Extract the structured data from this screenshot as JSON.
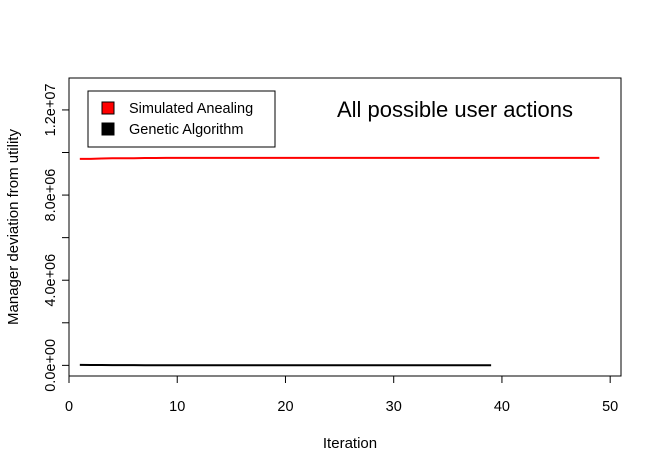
{
  "chart_data": {
    "type": "line",
    "title": "",
    "annotation": "All possible user actions",
    "xlabel": "Iteration",
    "ylabel": "Manager deviation from utility",
    "xlim": [
      0,
      51
    ],
    "ylim": [
      -500000,
      13500000
    ],
    "x_ticks": [
      0,
      10,
      20,
      30,
      40,
      50
    ],
    "x_tick_labels": [
      "0",
      "10",
      "20",
      "30",
      "40",
      "50"
    ],
    "y_ticks": [
      0,
      2000000,
      4000000,
      6000000,
      8000000,
      10000000,
      12000000
    ],
    "y_tick_labels": [
      "0.0e+00",
      "",
      "4.0e+06",
      "",
      "8.0e+06",
      "",
      "1.2e+07"
    ],
    "grid": false,
    "legend": "top-left",
    "series": [
      {
        "name": "Simulated Anealing",
        "color": "#ff0000",
        "x_start": 1,
        "x_end": 49,
        "x_step": 1,
        "values": [
          9700000,
          9700000,
          9720000,
          9730000,
          9730000,
          9730000,
          9740000,
          9740000,
          9750000,
          9750000,
          9750000,
          9750000,
          9750000,
          9750000,
          9750000,
          9750000,
          9750000,
          9750000,
          9750000,
          9750000,
          9750000,
          9750000,
          9750000,
          9750000,
          9750000,
          9750000,
          9750000,
          9750000,
          9750000,
          9750000,
          9750000,
          9750000,
          9750000,
          9750000,
          9750000,
          9750000,
          9750000,
          9750000,
          9750000,
          9750000,
          9750000,
          9750000,
          9750000,
          9750000,
          9750000,
          9750000,
          9750000,
          9750000,
          9750000
        ]
      },
      {
        "name": "Genetic Algorithm",
        "color": "#000000",
        "x_start": 1,
        "x_end": 39,
        "x_step": 1,
        "values": [
          20000,
          18000,
          15000,
          12000,
          10000,
          9000,
          8000,
          7000,
          6000,
          5000,
          5000,
          5000,
          5000,
          5000,
          5000,
          5000,
          5000,
          5000,
          5000,
          5000,
          5000,
          5000,
          5000,
          5000,
          5000,
          5000,
          5000,
          5000,
          5000,
          5000,
          5000,
          5000,
          5000,
          5000,
          5000,
          5000,
          5000,
          5000,
          5000
        ]
      }
    ]
  }
}
